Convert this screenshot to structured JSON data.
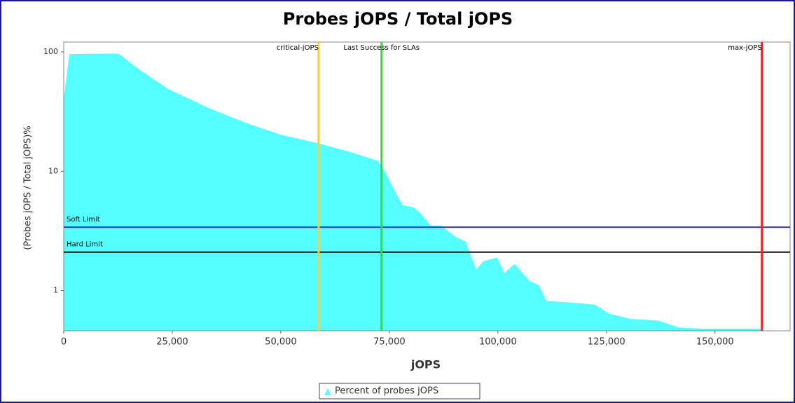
{
  "chart_data": {
    "type": "area",
    "title": "Probes jOPS / Total jOPS",
    "xlabel": "jOPS",
    "ylabel": "(Probes jOPS / Total jOPS)%",
    "x": [
      0,
      1300,
      12000,
      12740,
      17580,
      24030,
      33710,
      41770,
      49840,
      58710,
      65970,
      72420,
      74030,
      76450,
      78060,
      80480,
      82100,
      84520,
      86935,
      90160,
      92580,
      95000,
      96610,
      99840,
      101450,
      103870,
      107100,
      109520,
      111130,
      117580,
      122420,
      125640,
      130480,
      136940,
      141770,
      146610,
      160800
    ],
    "series": [
      {
        "name": "Percent of probes jOPS",
        "color": "#55ffff",
        "values": [
          40,
          96,
          97,
          96,
          70.4,
          48.9,
          33.5,
          25.6,
          20.3,
          17.1,
          14.5,
          12.2,
          9.9,
          6.6,
          5.2,
          5.0,
          4.5,
          3.5,
          3.5,
          2.83,
          2.57,
          1.5,
          1.76,
          1.89,
          1.4,
          1.67,
          1.22,
          1.1,
          0.82,
          0.79,
          0.76,
          0.64,
          0.58,
          0.56,
          0.49,
          0.48,
          0.48
        ]
      }
    ],
    "xlim": [
      0,
      167300
    ],
    "ylim": [
      0.46,
      121
    ],
    "log_y": true,
    "xticks": [
      0,
      {
        "value": 25000,
        "label": "25,000"
      },
      {
        "value": 50000,
        "label": "50,000"
      },
      {
        "value": 75000,
        "label": "75,000"
      },
      {
        "value": 100000,
        "label": "100,000"
      },
      {
        "value": 125000,
        "label": "125,000"
      },
      {
        "value": 150000,
        "label": "150,000"
      }
    ],
    "yticks": [
      1,
      10,
      100
    ],
    "vertical_markers": [
      {
        "label": "critical-jOPS",
        "value": 58700,
        "color": "#ffcc33"
      },
      {
        "label": "Last Success for SLAs",
        "value": 73200,
        "color": "#33dd33"
      },
      {
        "label": "max-jOPS",
        "value": 160800,
        "color": "#ee2222"
      }
    ],
    "horizontal_markers": [
      {
        "label": "Soft Limit",
        "value": 3.4,
        "color": "#3333ee"
      },
      {
        "label": "Hard Limit",
        "value": 2.1,
        "color": "#111111"
      }
    ]
  }
}
